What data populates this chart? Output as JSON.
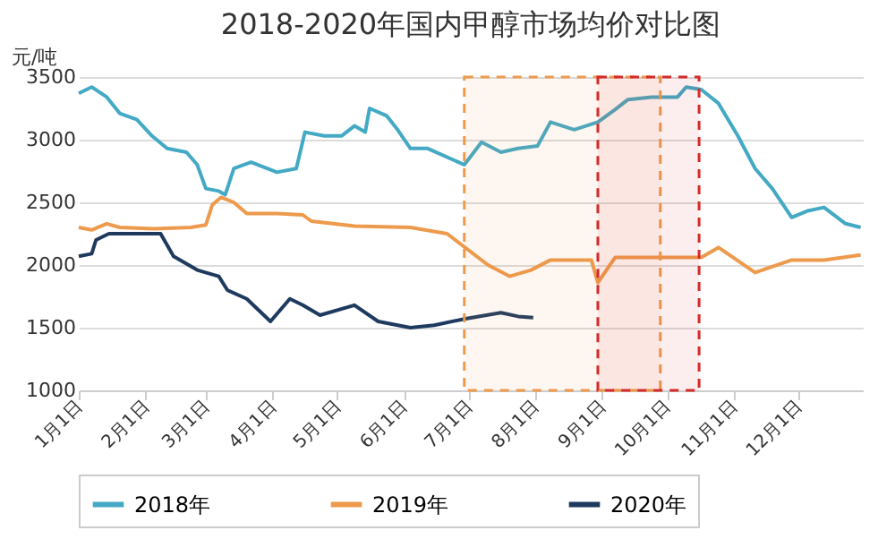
{
  "chart_data": {
    "type": "line",
    "title": "2018-2020年国内甲醇市场均价对比图",
    "ylabel": "元/吨",
    "xlim": [
      "--01-01",
      "--12-31"
    ],
    "xticks": [
      {
        "value": "--01-01",
        "label": "1月1日"
      },
      {
        "value": "--02-01",
        "label": "2月1日"
      },
      {
        "value": "--03-01",
        "label": "3月1日"
      },
      {
        "value": "--04-01",
        "label": "4月1日"
      },
      {
        "value": "--05-01",
        "label": "5月1日"
      },
      {
        "value": "--06-01",
        "label": "6月1日"
      },
      {
        "value": "--07-01",
        "label": "7月1日"
      },
      {
        "value": "--08-01",
        "label": "8月1日"
      },
      {
        "value": "--09-01",
        "label": "9月1日"
      },
      {
        "value": "--10-01",
        "label": "10月1日"
      },
      {
        "value": "--11-01",
        "label": "11月1日"
      },
      {
        "value": "--12-01",
        "label": "12月1日"
      }
    ],
    "ylim": [
      1000,
      3500
    ],
    "yticks": [
      1000,
      1500,
      2000,
      2500,
      3000,
      3500
    ],
    "grid": "y",
    "legend": "bottom",
    "series": [
      {
        "name": "2018年",
        "color": "#44a9c4",
        "x": [
          "--01-01",
          "--01-07",
          "--01-14",
          "--01-20",
          "--01-28",
          "--02-04",
          "--02-11",
          "--02-20",
          "--02-25",
          "--03-01",
          "--03-07",
          "--03-10",
          "--03-14",
          "--03-22",
          "--04-03",
          "--04-12",
          "--04-16",
          "--04-25",
          "--05-03",
          "--05-09",
          "--05-14",
          "--05-16",
          "--05-24",
          "--05-29",
          "--06-04",
          "--06-12",
          "--06-29",
          "--07-07",
          "--07-16",
          "--07-24",
          "--08-02",
          "--08-08",
          "--08-19",
          "--08-30",
          "--09-07",
          "--09-13",
          "--09-24",
          "--10-06",
          "--10-10",
          "--10-17",
          "--10-25",
          "--11-03",
          "--11-11",
          "--11-19",
          "--11-28",
          "--12-05",
          "--12-13",
          "--12-23",
          "--12-30"
        ],
        "values": [
          3370,
          3420,
          3340,
          3210,
          3160,
          3030,
          2930,
          2900,
          2800,
          2610,
          2590,
          2560,
          2770,
          2820,
          2740,
          2770,
          3060,
          3030,
          3030,
          3110,
          3060,
          3250,
          3190,
          3080,
          2930,
          2930,
          2800,
          2980,
          2900,
          2930,
          2950,
          3140,
          3080,
          3140,
          3240,
          3320,
          3340,
          3340,
          3420,
          3400,
          3290,
          3030,
          2770,
          2610,
          2380,
          2430,
          2460,
          2330,
          2300
        ]
      },
      {
        "name": "2019年",
        "color": "#ed9a4c",
        "x": [
          "--01-01",
          "--01-07",
          "--01-14",
          "--01-20",
          "--02-05",
          "--02-22",
          "--03-01",
          "--03-04",
          "--03-08",
          "--03-14",
          "--03-20",
          "--04-03",
          "--04-15",
          "--04-19",
          "--05-09",
          "--06-04",
          "--06-21",
          "--07-10",
          "--07-20",
          "--07-30",
          "--08-08",
          "--08-27",
          "--08-30",
          "--09-07",
          "--10-17",
          "--10-25",
          "--11-11",
          "--11-28",
          "--12-13",
          "--12-30"
        ],
        "values": [
          2300,
          2280,
          2330,
          2300,
          2290,
          2300,
          2320,
          2480,
          2540,
          2500,
          2410,
          2410,
          2400,
          2350,
          2310,
          2300,
          2250,
          2000,
          1910,
          1960,
          2040,
          2040,
          1860,
          2060,
          2060,
          2140,
          1940,
          2040,
          2040,
          2080
        ]
      },
      {
        "name": "2020年",
        "color": "#1f3a5f",
        "x": [
          "--01-01",
          "--01-07",
          "--01-09",
          "--01-15",
          "--02-08",
          "--02-14",
          "--02-25",
          "--03-07",
          "--03-11",
          "--03-20",
          "--03-31",
          "--04-09",
          "--04-15",
          "--04-23",
          "--05-09",
          "--05-20",
          "--06-04",
          "--06-15",
          "--06-29",
          "--07-16",
          "--07-24",
          "--07-31"
        ],
        "values": [
          2070,
          2090,
          2200,
          2250,
          2250,
          2070,
          1960,
          1910,
          1800,
          1730,
          1550,
          1730,
          1680,
          1600,
          1680,
          1550,
          1500,
          1520,
          1570,
          1620,
          1590,
          1580
        ]
      }
    ],
    "bands": [
      {
        "axis": "x",
        "from": "--06-29",
        "to": "--09-28",
        "color": "#ed9a4c"
      },
      {
        "axis": "x",
        "from": "--08-30",
        "to": "--10-16",
        "color": "#d62a2a"
      }
    ]
  }
}
